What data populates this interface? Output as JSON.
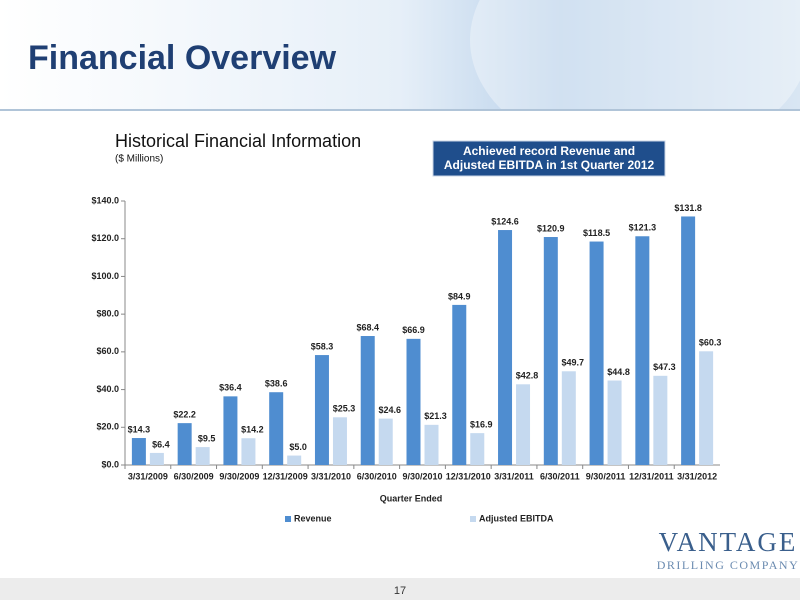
{
  "slide": {
    "title": "Financial Overview",
    "callout": [
      "Achieved record Revenue and",
      "Adjusted EBITDA in 1st Quarter 2012"
    ],
    "page_number": "17",
    "logo": [
      "VANTAGE",
      "DRILLING COMPANY"
    ]
  },
  "chart_data": {
    "type": "bar",
    "title": "Historical Financial Information",
    "subtitle": "($ Millions)",
    "xlabel": "Quarter Ended",
    "categories": [
      "3/31/2009",
      "6/30/2009",
      "9/30/2009",
      "12/31/2009",
      "3/31/2010",
      "6/30/2010",
      "9/30/2010",
      "12/31/2010",
      "3/31/2011",
      "6/30/2011",
      "9/30/2011",
      "12/31/2011",
      "3/31/2012"
    ],
    "series": [
      {
        "name": "Revenue",
        "color": "#4f8dd0",
        "values": [
          14.3,
          22.2,
          36.4,
          38.6,
          58.3,
          68.4,
          66.9,
          84.9,
          124.6,
          120.9,
          118.5,
          121.3,
          131.8
        ],
        "value_labels": [
          "$14.3",
          "$22.2",
          "$36.4",
          "$38.6",
          "$58.3",
          "$68.4",
          "$66.9",
          "$84.9",
          "$124.6",
          "$120.9",
          "$118.5",
          "$121.3",
          "$131.8"
        ]
      },
      {
        "name": "Adjusted EBITDA",
        "color": "#c5d9ef",
        "values": [
          6.4,
          9.5,
          14.2,
          5.0,
          25.3,
          24.6,
          21.3,
          16.9,
          42.8,
          49.7,
          44.8,
          47.3,
          60.3
        ],
        "value_labels": [
          "$6.4",
          "$9.5",
          "$14.2",
          "$5.0",
          "$25.3",
          "$24.6",
          "$21.3",
          "$16.9",
          "$42.8",
          "$49.7",
          "$44.8",
          "$47.3",
          "$60.3"
        ]
      }
    ],
    "ylim": [
      0,
      140
    ],
    "yticks": [
      {
        "value": 0,
        "label": "$0.0"
      },
      {
        "value": 20,
        "label": "$20.0"
      },
      {
        "value": 40,
        "label": "$40.0"
      },
      {
        "value": 60,
        "label": "$60.0"
      },
      {
        "value": 80,
        "label": "$80.0"
      },
      {
        "value": 100,
        "label": "$100.0"
      },
      {
        "value": 120,
        "label": "$120.0"
      },
      {
        "value": 140,
        "label": "$140.0"
      }
    ],
    "legend": "bottom"
  }
}
